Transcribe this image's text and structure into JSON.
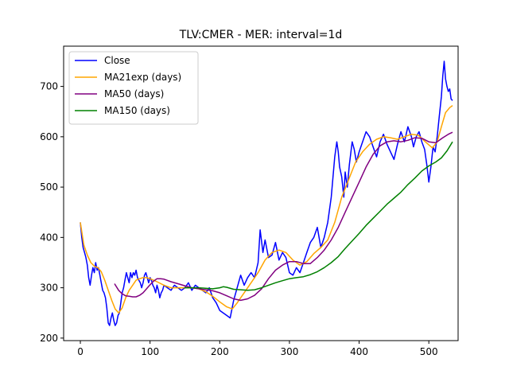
{
  "chart_data": {
    "type": "line",
    "title": "TLV:CMER - MER: interval=1d",
    "xlabel": "",
    "ylabel": "",
    "xlim": [
      -24,
      542
    ],
    "ylim": [
      195,
      780
    ],
    "x_ticks": [
      0,
      100,
      200,
      300,
      400,
      500
    ],
    "y_ticks": [
      200,
      300,
      400,
      500,
      600,
      700
    ],
    "grid": false,
    "legend_position": "upper-left",
    "series": [
      {
        "name": "Close",
        "color": "#0000ff",
        "points": [
          [
            0,
            430
          ],
          [
            2,
            400
          ],
          [
            4,
            380
          ],
          [
            6,
            370
          ],
          [
            8,
            360
          ],
          [
            10,
            345
          ],
          [
            12,
            320
          ],
          [
            14,
            305
          ],
          [
            16,
            325
          ],
          [
            18,
            340
          ],
          [
            20,
            330
          ],
          [
            22,
            350
          ],
          [
            24,
            335
          ],
          [
            26,
            340
          ],
          [
            28,
            325
          ],
          [
            30,
            310
          ],
          [
            32,
            295
          ],
          [
            34,
            290
          ],
          [
            36,
            280
          ],
          [
            38,
            260
          ],
          [
            40,
            230
          ],
          [
            42,
            225
          ],
          [
            44,
            240
          ],
          [
            46,
            250
          ],
          [
            48,
            235
          ],
          [
            50,
            225
          ],
          [
            52,
            230
          ],
          [
            54,
            245
          ],
          [
            56,
            250
          ],
          [
            58,
            270
          ],
          [
            60,
            290
          ],
          [
            62,
            300
          ],
          [
            64,
            315
          ],
          [
            66,
            330
          ],
          [
            68,
            320
          ],
          [
            70,
            310
          ],
          [
            72,
            330
          ],
          [
            74,
            320
          ],
          [
            76,
            330
          ],
          [
            78,
            325
          ],
          [
            80,
            335
          ],
          [
            82,
            320
          ],
          [
            84,
            315
          ],
          [
            86,
            310
          ],
          [
            88,
            300
          ],
          [
            90,
            310
          ],
          [
            92,
            325
          ],
          [
            94,
            330
          ],
          [
            96,
            320
          ],
          [
            98,
            310
          ],
          [
            100,
            320
          ],
          [
            102,
            315
          ],
          [
            104,
            305
          ],
          [
            106,
            300
          ],
          [
            108,
            290
          ],
          [
            110,
            305
          ],
          [
            112,
            295
          ],
          [
            114,
            280
          ],
          [
            116,
            290
          ],
          [
            118,
            295
          ],
          [
            120,
            305
          ],
          [
            125,
            300
          ],
          [
            130,
            295
          ],
          [
            135,
            305
          ],
          [
            140,
            300
          ],
          [
            145,
            295
          ],
          [
            150,
            300
          ],
          [
            155,
            310
          ],
          [
            160,
            295
          ],
          [
            165,
            305
          ],
          [
            170,
            300
          ],
          [
            175,
            295
          ],
          [
            180,
            290
          ],
          [
            185,
            300
          ],
          [
            190,
            280
          ],
          [
            195,
            270
          ],
          [
            200,
            255
          ],
          [
            205,
            250
          ],
          [
            210,
            245
          ],
          [
            215,
            240
          ],
          [
            220,
            275
          ],
          [
            225,
            300
          ],
          [
            230,
            325
          ],
          [
            235,
            305
          ],
          [
            240,
            320
          ],
          [
            245,
            330
          ],
          [
            250,
            320
          ],
          [
            255,
            350
          ],
          [
            258,
            415
          ],
          [
            262,
            370
          ],
          [
            265,
            395
          ],
          [
            270,
            360
          ],
          [
            275,
            365
          ],
          [
            280,
            390
          ],
          [
            285,
            355
          ],
          [
            290,
            370
          ],
          [
            295,
            360
          ],
          [
            300,
            330
          ],
          [
            305,
            325
          ],
          [
            310,
            340
          ],
          [
            315,
            330
          ],
          [
            320,
            350
          ],
          [
            325,
            370
          ],
          [
            330,
            390
          ],
          [
            335,
            400
          ],
          [
            340,
            420
          ],
          [
            345,
            380
          ],
          [
            350,
            400
          ],
          [
            355,
            430
          ],
          [
            360,
            480
          ],
          [
            365,
            560
          ],
          [
            368,
            590
          ],
          [
            370,
            570
          ],
          [
            372,
            540
          ],
          [
            375,
            520
          ],
          [
            378,
            480
          ],
          [
            380,
            530
          ],
          [
            383,
            500
          ],
          [
            386,
            545
          ],
          [
            390,
            590
          ],
          [
            393,
            575
          ],
          [
            396,
            550
          ],
          [
            400,
            570
          ],
          [
            405,
            590
          ],
          [
            410,
            610
          ],
          [
            415,
            600
          ],
          [
            420,
            580
          ],
          [
            425,
            560
          ],
          [
            430,
            590
          ],
          [
            435,
            605
          ],
          [
            440,
            585
          ],
          [
            445,
            570
          ],
          [
            450,
            555
          ],
          [
            455,
            585
          ],
          [
            460,
            610
          ],
          [
            465,
            590
          ],
          [
            470,
            620
          ],
          [
            475,
            600
          ],
          [
            478,
            580
          ],
          [
            482,
            600
          ],
          [
            486,
            610
          ],
          [
            490,
            590
          ],
          [
            494,
            575
          ],
          [
            497,
            545
          ],
          [
            500,
            510
          ],
          [
            503,
            540
          ],
          [
            506,
            580
          ],
          [
            509,
            570
          ],
          [
            512,
            600
          ],
          [
            515,
            640
          ],
          [
            518,
            680
          ],
          [
            520,
            720
          ],
          [
            522,
            750
          ],
          [
            524,
            715
          ],
          [
            526,
            700
          ],
          [
            528,
            690
          ],
          [
            530,
            695
          ],
          [
            532,
            675
          ],
          [
            534,
            672
          ]
        ]
      },
      {
        "name": "MA21exp (days)",
        "color": "#ffa500",
        "points": [
          [
            0,
            430
          ],
          [
            5,
            385
          ],
          [
            10,
            365
          ],
          [
            15,
            350
          ],
          [
            20,
            343
          ],
          [
            25,
            340
          ],
          [
            30,
            332
          ],
          [
            35,
            315
          ],
          [
            40,
            295
          ],
          [
            45,
            275
          ],
          [
            50,
            258
          ],
          [
            55,
            250
          ],
          [
            60,
            260
          ],
          [
            65,
            280
          ],
          [
            70,
            295
          ],
          [
            75,
            305
          ],
          [
            80,
            315
          ],
          [
            85,
            318
          ],
          [
            90,
            320
          ],
          [
            95,
            320
          ],
          [
            100,
            318
          ],
          [
            110,
            312
          ],
          [
            120,
            305
          ],
          [
            130,
            300
          ],
          [
            140,
            300
          ],
          [
            150,
            300
          ],
          [
            160,
            300
          ],
          [
            170,
            298
          ],
          [
            180,
            292
          ],
          [
            190,
            283
          ],
          [
            200,
            272
          ],
          [
            210,
            262
          ],
          [
            218,
            258
          ],
          [
            225,
            270
          ],
          [
            235,
            290
          ],
          [
            245,
            310
          ],
          [
            255,
            330
          ],
          [
            265,
            355
          ],
          [
            275,
            370
          ],
          [
            285,
            375
          ],
          [
            295,
            370
          ],
          [
            305,
            355
          ],
          [
            315,
            345
          ],
          [
            325,
            352
          ],
          [
            335,
            368
          ],
          [
            345,
            380
          ],
          [
            355,
            395
          ],
          [
            365,
            430
          ],
          [
            375,
            480
          ],
          [
            385,
            515
          ],
          [
            395,
            550
          ],
          [
            405,
            570
          ],
          [
            415,
            585
          ],
          [
            425,
            595
          ],
          [
            435,
            600
          ],
          [
            445,
            598
          ],
          [
            455,
            595
          ],
          [
            465,
            600
          ],
          [
            475,
            605
          ],
          [
            485,
            603
          ],
          [
            495,
            590
          ],
          [
            505,
            578
          ],
          [
            512,
            590
          ],
          [
            518,
            620
          ],
          [
            524,
            648
          ],
          [
            530,
            658
          ],
          [
            534,
            662
          ]
        ]
      },
      {
        "name": "MA50 (days)",
        "color": "#800080",
        "points": [
          [
            49,
            308
          ],
          [
            55,
            295
          ],
          [
            60,
            288
          ],
          [
            65,
            284
          ],
          [
            70,
            283
          ],
          [
            75,
            282
          ],
          [
            80,
            282
          ],
          [
            85,
            285
          ],
          [
            90,
            290
          ],
          [
            95,
            298
          ],
          [
            100,
            306
          ],
          [
            105,
            313
          ],
          [
            110,
            318
          ],
          [
            115,
            318
          ],
          [
            120,
            317
          ],
          [
            130,
            312
          ],
          [
            140,
            308
          ],
          [
            150,
            304
          ],
          [
            160,
            300
          ],
          [
            170,
            298
          ],
          [
            180,
            296
          ],
          [
            190,
            294
          ],
          [
            200,
            290
          ],
          [
            210,
            284
          ],
          [
            220,
            278
          ],
          [
            230,
            275
          ],
          [
            240,
            278
          ],
          [
            250,
            285
          ],
          [
            260,
            298
          ],
          [
            270,
            318
          ],
          [
            280,
            335
          ],
          [
            290,
            345
          ],
          [
            300,
            352
          ],
          [
            310,
            352
          ],
          [
            320,
            348
          ],
          [
            330,
            348
          ],
          [
            340,
            360
          ],
          [
            350,
            375
          ],
          [
            360,
            395
          ],
          [
            370,
            420
          ],
          [
            380,
            450
          ],
          [
            390,
            480
          ],
          [
            400,
            510
          ],
          [
            410,
            540
          ],
          [
            420,
            565
          ],
          [
            430,
            582
          ],
          [
            440,
            590
          ],
          [
            450,
            592
          ],
          [
            460,
            590
          ],
          [
            470,
            593
          ],
          [
            480,
            598
          ],
          [
            490,
            597
          ],
          [
            500,
            590
          ],
          [
            510,
            588
          ],
          [
            520,
            598
          ],
          [
            528,
            605
          ],
          [
            534,
            609
          ]
        ]
      },
      {
        "name": "MA150 (days)",
        "color": "#008000",
        "points": [
          [
            149,
            300
          ],
          [
            160,
            300
          ],
          [
            170,
            300
          ],
          [
            180,
            299
          ],
          [
            190,
            298
          ],
          [
            200,
            300
          ],
          [
            205,
            302
          ],
          [
            210,
            301
          ],
          [
            220,
            297
          ],
          [
            230,
            296
          ],
          [
            240,
            295
          ],
          [
            250,
            296
          ],
          [
            260,
            300
          ],
          [
            270,
            305
          ],
          [
            280,
            310
          ],
          [
            290,
            314
          ],
          [
            300,
            318
          ],
          [
            310,
            320
          ],
          [
            320,
            322
          ],
          [
            330,
            326
          ],
          [
            340,
            332
          ],
          [
            350,
            340
          ],
          [
            360,
            350
          ],
          [
            370,
            362
          ],
          [
            380,
            378
          ],
          [
            390,
            393
          ],
          [
            400,
            408
          ],
          [
            410,
            424
          ],
          [
            420,
            438
          ],
          [
            430,
            452
          ],
          [
            440,
            466
          ],
          [
            450,
            478
          ],
          [
            460,
            490
          ],
          [
            470,
            505
          ],
          [
            480,
            518
          ],
          [
            490,
            532
          ],
          [
            500,
            542
          ],
          [
            510,
            550
          ],
          [
            518,
            558
          ],
          [
            526,
            572
          ],
          [
            534,
            590
          ]
        ]
      }
    ]
  }
}
